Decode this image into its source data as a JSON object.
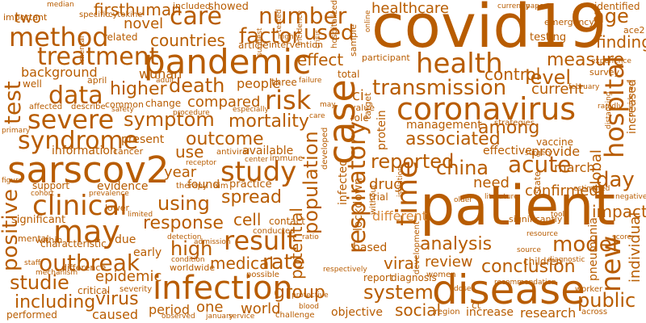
{
  "colors": {
    "background": "#ffffff",
    "word": "#b85c00",
    "word_light": "#d98a3a"
  },
  "words": {
    "covid19": "covid19",
    "patient": "patient",
    "pandemic": "pandemic",
    "coronavirus": "coronavirus",
    "sarscov2": "sarscov2",
    "disease": "disease",
    "infection": "infection",
    "health": "health",
    "case": "case",
    "study": "study",
    "clinical": "clinical",
    "may": "may",
    "result": "result",
    "method": "method",
    "treatment": "treatment",
    "data": "data",
    "severe": "severe",
    "syndrome": "syndrome",
    "outbreak": "outbreak",
    "risk": "risk",
    "transmission": "transmission",
    "respiratory": "respiratory",
    "care": "care",
    "number": "number",
    "factor": "factor",
    "used": "used",
    "countries": "countries",
    "novel": "novel",
    "first": "first",
    "human": "human",
    "two": "two",
    "healthcare": "healthcare",
    "age": "age",
    "identified": "identified",
    "measure": "measure",
    "finding": "finding",
    "level": "level",
    "control": "control",
    "effect": "effect",
    "higher": "higher",
    "death": "death",
    "symptom": "symptom",
    "mortality": "mortality",
    "among": "among",
    "associated": "associated",
    "hospital": "hospital",
    "outcome": "outcome",
    "use": "use",
    "year": "year",
    "china": "china",
    "acute": "acute",
    "reported": "reported",
    "time": "time",
    "population": "population",
    "spread": "spread",
    "using": "using",
    "response": "response",
    "high": "high",
    "positive": "positive",
    "test": "test",
    "rate": "rate",
    "medical": "medical",
    "analysis": "analysis",
    "model": "model",
    "conclusion": "conclusion",
    "day": "day",
    "impact": "impact",
    "new": "new",
    "public": "public",
    "viral": "viral",
    "review": "review",
    "system": "system",
    "social": "social",
    "group": "group",
    "virus": "virus",
    "including": "including",
    "studie": "studie",
    "epidemic": "epidemic",
    "world": "world",
    "one": "one",
    "period": "period",
    "caused": "caused",
    "compared": "compared",
    "current": "current",
    "people": "people",
    "provide": "provide",
    "drug": "drug",
    "need": "need",
    "confirmed": "confirmed",
    "march": "march",
    "different": "different",
    "background": "background",
    "wuhan": "wuhan",
    "well": "well",
    "cell": "cell",
    "evidence": "evidence",
    "information": "information",
    "present": "present",
    "significant": "significant",
    "global": "global",
    "management": "management",
    "potential": "potential",
    "based": "based",
    "research": "research",
    "increase": "increase",
    "objective": "objective",
    "performed": "performed",
    "critical": "critical",
    "early": "early",
    "lockdown": "lockdown",
    "individual": "individual",
    "protein": "protein",
    "infected": "infected",
    "found": "found",
    "characteristic": "characteristic",
    "difference": "difference",
    "within": "within",
    "due": "due",
    "available": "available",
    "important": "important",
    "included": "included",
    "showed": "showed",
    "specific": "specific",
    "cytokine": "cytokine",
    "related": "related",
    "article": "article",
    "intervention": "intervention",
    "testing": "testing",
    "emergency": "emergency",
    "ace2": "ace2",
    "survey": "survey",
    "effective": "effective",
    "vaccine": "vaccine",
    "trial": "trial",
    "increased": "increased",
    "pneumonia": "pneumonia",
    "children": "children",
    "diagnosis": "diagnosis",
    "mental": "mental",
    "support": "support",
    "change": "change",
    "common": "common",
    "three": "three",
    "total": "total",
    "participant": "participant",
    "target": "target",
    "sample": "sample",
    "role": "role",
    "value": "value",
    "adult": "adult",
    "april": "april",
    "affected": "affected",
    "describe": "describe",
    "cancer": "cancer",
    "therapy": "therapy",
    "aim": "aim",
    "practice": "practice",
    "immune": "immune",
    "contact": "contact",
    "conducted": "conducted",
    "severity": "severity",
    "worldwide": "worldwide",
    "possible": "possible",
    "challenge": "challenge",
    "women": "women",
    "hospitalized": "hospitalized",
    "suggest": "suggest",
    "tested": "tested",
    "incidence": "incidence",
    "strategies": "strategies",
    "significantly": "significantly",
    "recommendation": "recommendation",
    "worker": "worker",
    "region": "region",
    "across": "across",
    "resource": "resource",
    "rapidly": "rapidly",
    "february": "february",
    "considered": "considered",
    "experience": "experience",
    "currently": "currently",
    "paper": "paper",
    "median": "median",
    "report": "report",
    "condition": "condition",
    "detection": "detection",
    "lower": "lower",
    "limited": "limited",
    "prevalence": "prevalence",
    "cohort": "cohort",
    "primary": "primary",
    "staff": "staff",
    "observed": "observed",
    "service": "service",
    "blood": "blood",
    "distancing": "distancing",
    "respectively": "respectively",
    "surgery": "surgery",
    "ratio": "ratio",
    "source": "source",
    "diagnostic": "diagnostic",
    "negative": "negative",
    "score": "score",
    "dose": "dose",
    "state": "state",
    "mechanism": "mechanism",
    "tool": "tool",
    "estimated": "estimated",
    "figure": "figure",
    "may2": "may",
    "failure": "failure",
    "highly": "highly",
    "crisis": "crisis",
    "online": "online",
    "care2": "care",
    "safety": "safety",
    "receptor": "receptor",
    "antiviral": "antiviral",
    "center": "center",
    "admission": "admission",
    "procedure": "procedure",
    "especially": "especially",
    "developed": "developed",
    "without": "without",
    "isolation": "isolation",
    "literature": "literature",
    "older": "older",
    "ct": "ct",
    "ci": "ci",
    "development": "development",
    "january": "january",
    "protective": "protective"
  }
}
